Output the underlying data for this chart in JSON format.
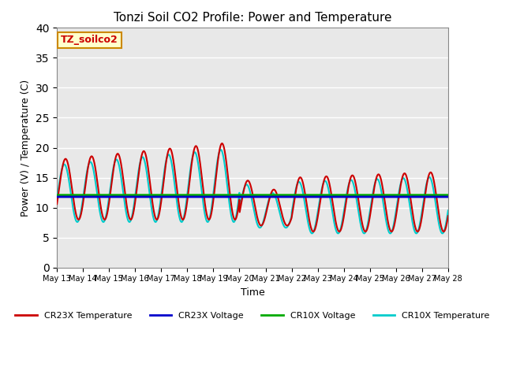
{
  "title": "Tonzi Soil CO2 Profile: Power and Temperature",
  "xlabel": "Time",
  "ylabel": "Power (V) / Temperature (C)",
  "ylim": [
    0,
    40
  ],
  "yticks": [
    0,
    5,
    10,
    15,
    20,
    25,
    30,
    35,
    40
  ],
  "x_tick_labels": [
    "May 13",
    "May 14",
    "May 15",
    "May 16",
    "May 17",
    "May 18",
    "May 19",
    "May 20",
    "May 21",
    "May 22",
    "May 23",
    "May 24",
    "May 25",
    "May 26",
    "May 27",
    "May 28"
  ],
  "cr23x_temp_color": "#cc0000",
  "cr23x_volt_color": "#0000cc",
  "cr10x_volt_color": "#00aa00",
  "cr10x_temp_color": "#00cccc",
  "cr23x_volt_value": 11.8,
  "cr10x_volt_value": 12.1,
  "label_box_color": "#ffffcc",
  "label_box_edge": "#cc8800",
  "label_text": "TZ_soilco2",
  "bg_color": "#e8e8e8",
  "linewidth_temp": 1.5,
  "linewidth_volt": 2.0,
  "legend_items": [
    "CR23X Temperature",
    "CR23X Voltage",
    "CR10X Voltage",
    "CR10X Temperature"
  ]
}
